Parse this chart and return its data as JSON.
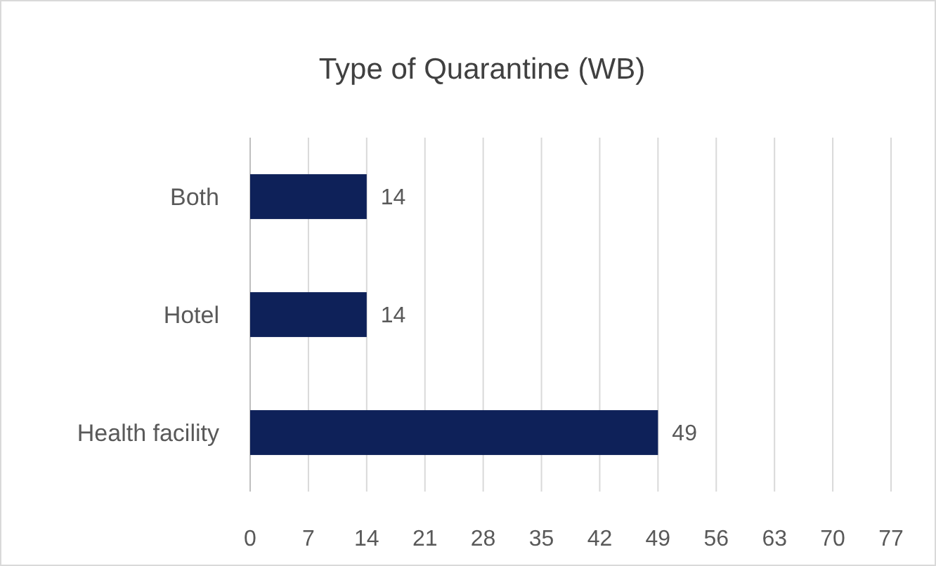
{
  "chart_data": {
    "type": "bar",
    "orientation": "horizontal",
    "title": "Type of Quarantine (WB)",
    "categories": [
      "Both",
      "Hotel",
      "Health facility"
    ],
    "values": [
      14,
      14,
      49
    ],
    "color": "#0e2159",
    "xlim": [
      0,
      77
    ],
    "xticks": [
      0,
      7,
      14,
      21,
      28,
      35,
      42,
      49,
      56,
      63,
      70,
      77
    ],
    "grid": "x",
    "data_labels": true
  }
}
